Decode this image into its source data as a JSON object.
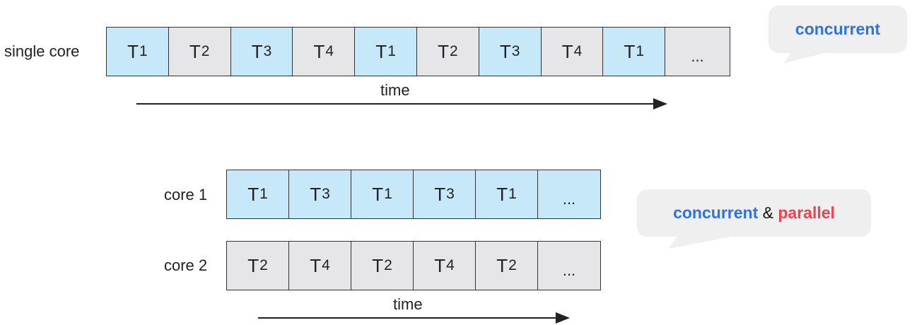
{
  "colors": {
    "blue_cell": "#c6e8f8",
    "gray_cell": "#e6e6e8",
    "concurrent": "#2f72e4",
    "parallel": "#f0434f",
    "bubble": "#efefef"
  },
  "single": {
    "label": "single core",
    "cells": [
      {
        "t": "T",
        "s": "1",
        "c": "blue"
      },
      {
        "t": "T",
        "s": "2",
        "c": "gray"
      },
      {
        "t": "T",
        "s": "3",
        "c": "blue"
      },
      {
        "t": "T",
        "s": "4",
        "c": "gray"
      },
      {
        "t": "T",
        "s": "1",
        "c": "blue"
      },
      {
        "t": "T",
        "s": "2",
        "c": "gray"
      },
      {
        "t": "T",
        "s": "3",
        "c": "blue"
      },
      {
        "t": "T",
        "s": "4",
        "c": "gray"
      },
      {
        "t": "T",
        "s": "1",
        "c": "blue"
      },
      {
        "t": "...",
        "s": "",
        "c": "gray"
      }
    ],
    "time": "time"
  },
  "core1": {
    "label": "core 1",
    "cells": [
      {
        "t": "T",
        "s": "1",
        "c": "blue"
      },
      {
        "t": "T",
        "s": "3",
        "c": "blue"
      },
      {
        "t": "T",
        "s": "1",
        "c": "blue"
      },
      {
        "t": "T",
        "s": "3",
        "c": "blue"
      },
      {
        "t": "T",
        "s": "1",
        "c": "blue"
      },
      {
        "t": "...",
        "s": "",
        "c": "blue"
      }
    ]
  },
  "core2": {
    "label": "core 2",
    "cells": [
      {
        "t": "T",
        "s": "2",
        "c": "gray"
      },
      {
        "t": "T",
        "s": "4",
        "c": "gray"
      },
      {
        "t": "T",
        "s": "2",
        "c": "gray"
      },
      {
        "t": "T",
        "s": "4",
        "c": "gray"
      },
      {
        "t": "T",
        "s": "2",
        "c": "gray"
      },
      {
        "t": "...",
        "s": "",
        "c": "gray"
      }
    ],
    "time": "time"
  },
  "bubble1": {
    "text": "concurrent"
  },
  "bubble2": {
    "word1": "concurrent",
    "amp": " & ",
    "word2": "parallel"
  }
}
